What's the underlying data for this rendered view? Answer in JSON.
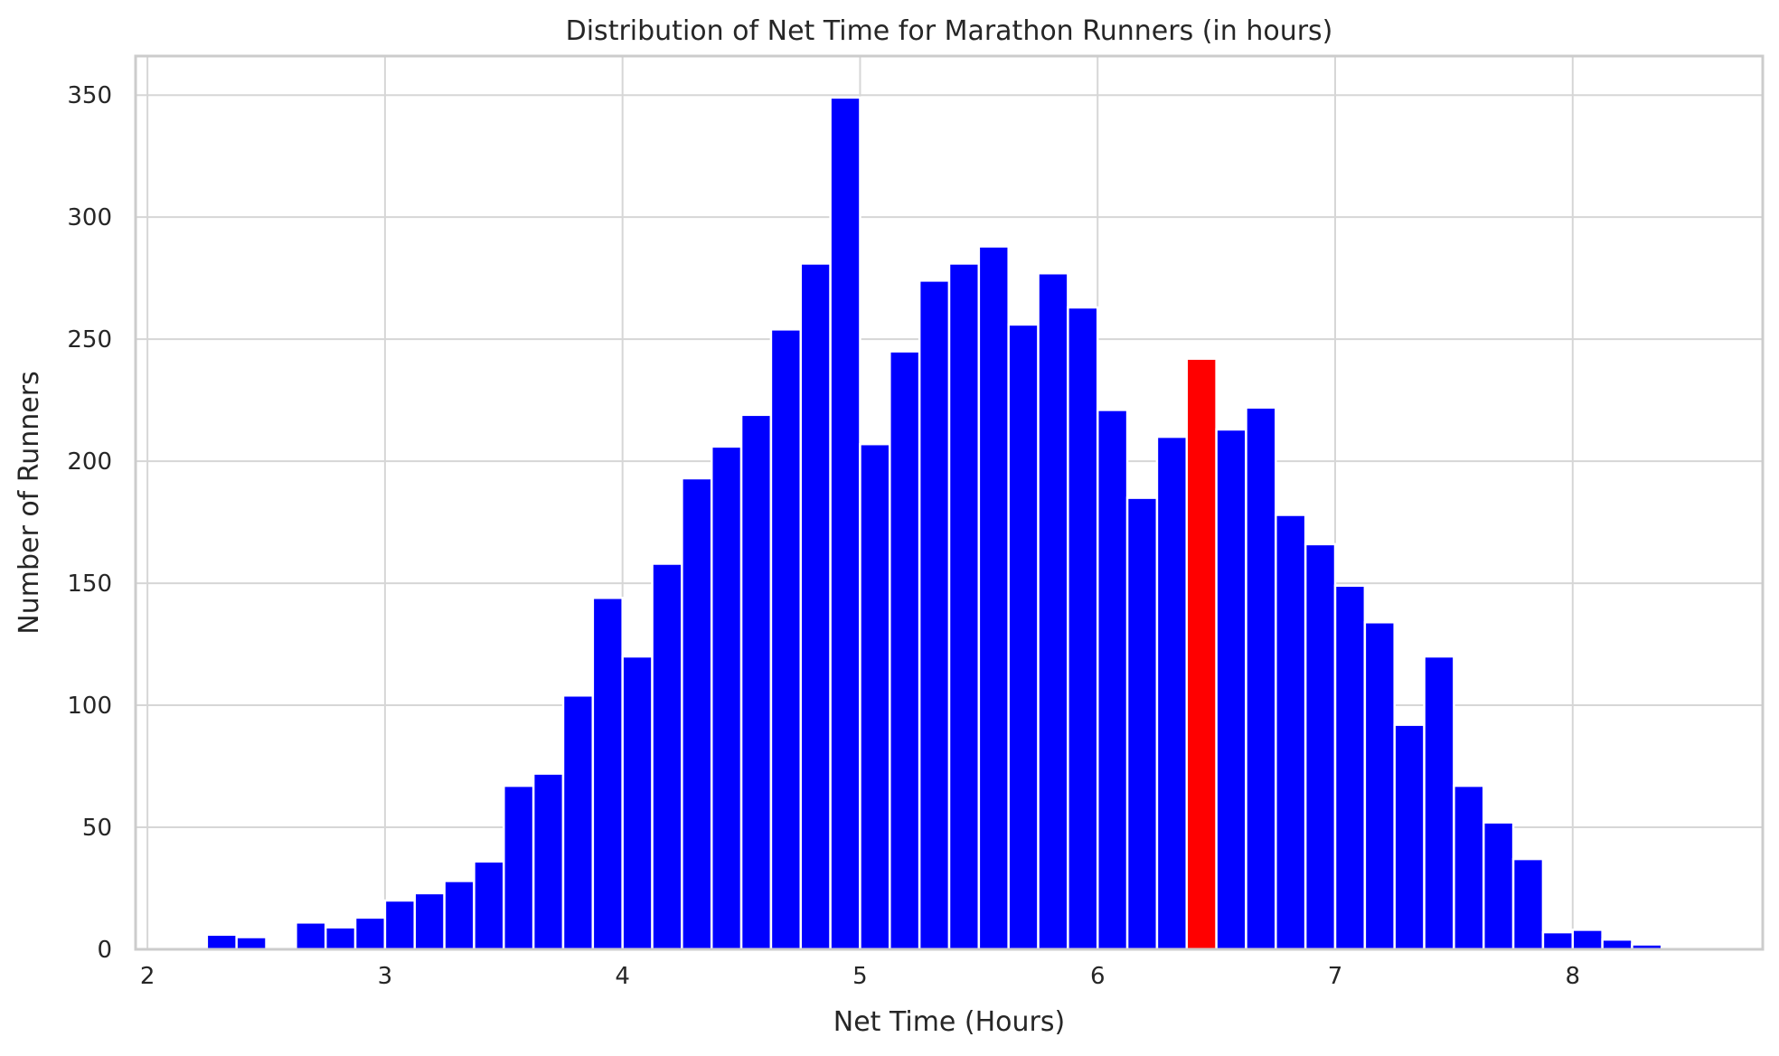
{
  "chart_data": {
    "type": "bar",
    "title": "Distribution of Net Time for Marathon Runners (in hours)",
    "xlabel": "Net Time (Hours)",
    "ylabel": "Number of Runners",
    "xlim": [
      1.95,
      8.8
    ],
    "ylim": [
      0,
      366
    ],
    "xticks": [
      2,
      3,
      4,
      5,
      6,
      7,
      8
    ],
    "yticks": [
      0,
      50,
      100,
      150,
      200,
      250,
      300,
      350
    ],
    "grid": true,
    "bin_start": 2.0,
    "bin_width": 0.125,
    "values": [
      0,
      0,
      6,
      5,
      0,
      11,
      9,
      13,
      20,
      23,
      28,
      36,
      67,
      72,
      104,
      144,
      120,
      158,
      193,
      206,
      219,
      254,
      281,
      349,
      207,
      245,
      274,
      281,
      288,
      256,
      277,
      263,
      221,
      185,
      210,
      242,
      213,
      222,
      178,
      166,
      149,
      134,
      92,
      120,
      67,
      52,
      37,
      7,
      8,
      4,
      2,
      1
    ],
    "colors": {
      "default": "#0000ff",
      "highlight": "#ff0000"
    },
    "highlight_index": 35
  }
}
